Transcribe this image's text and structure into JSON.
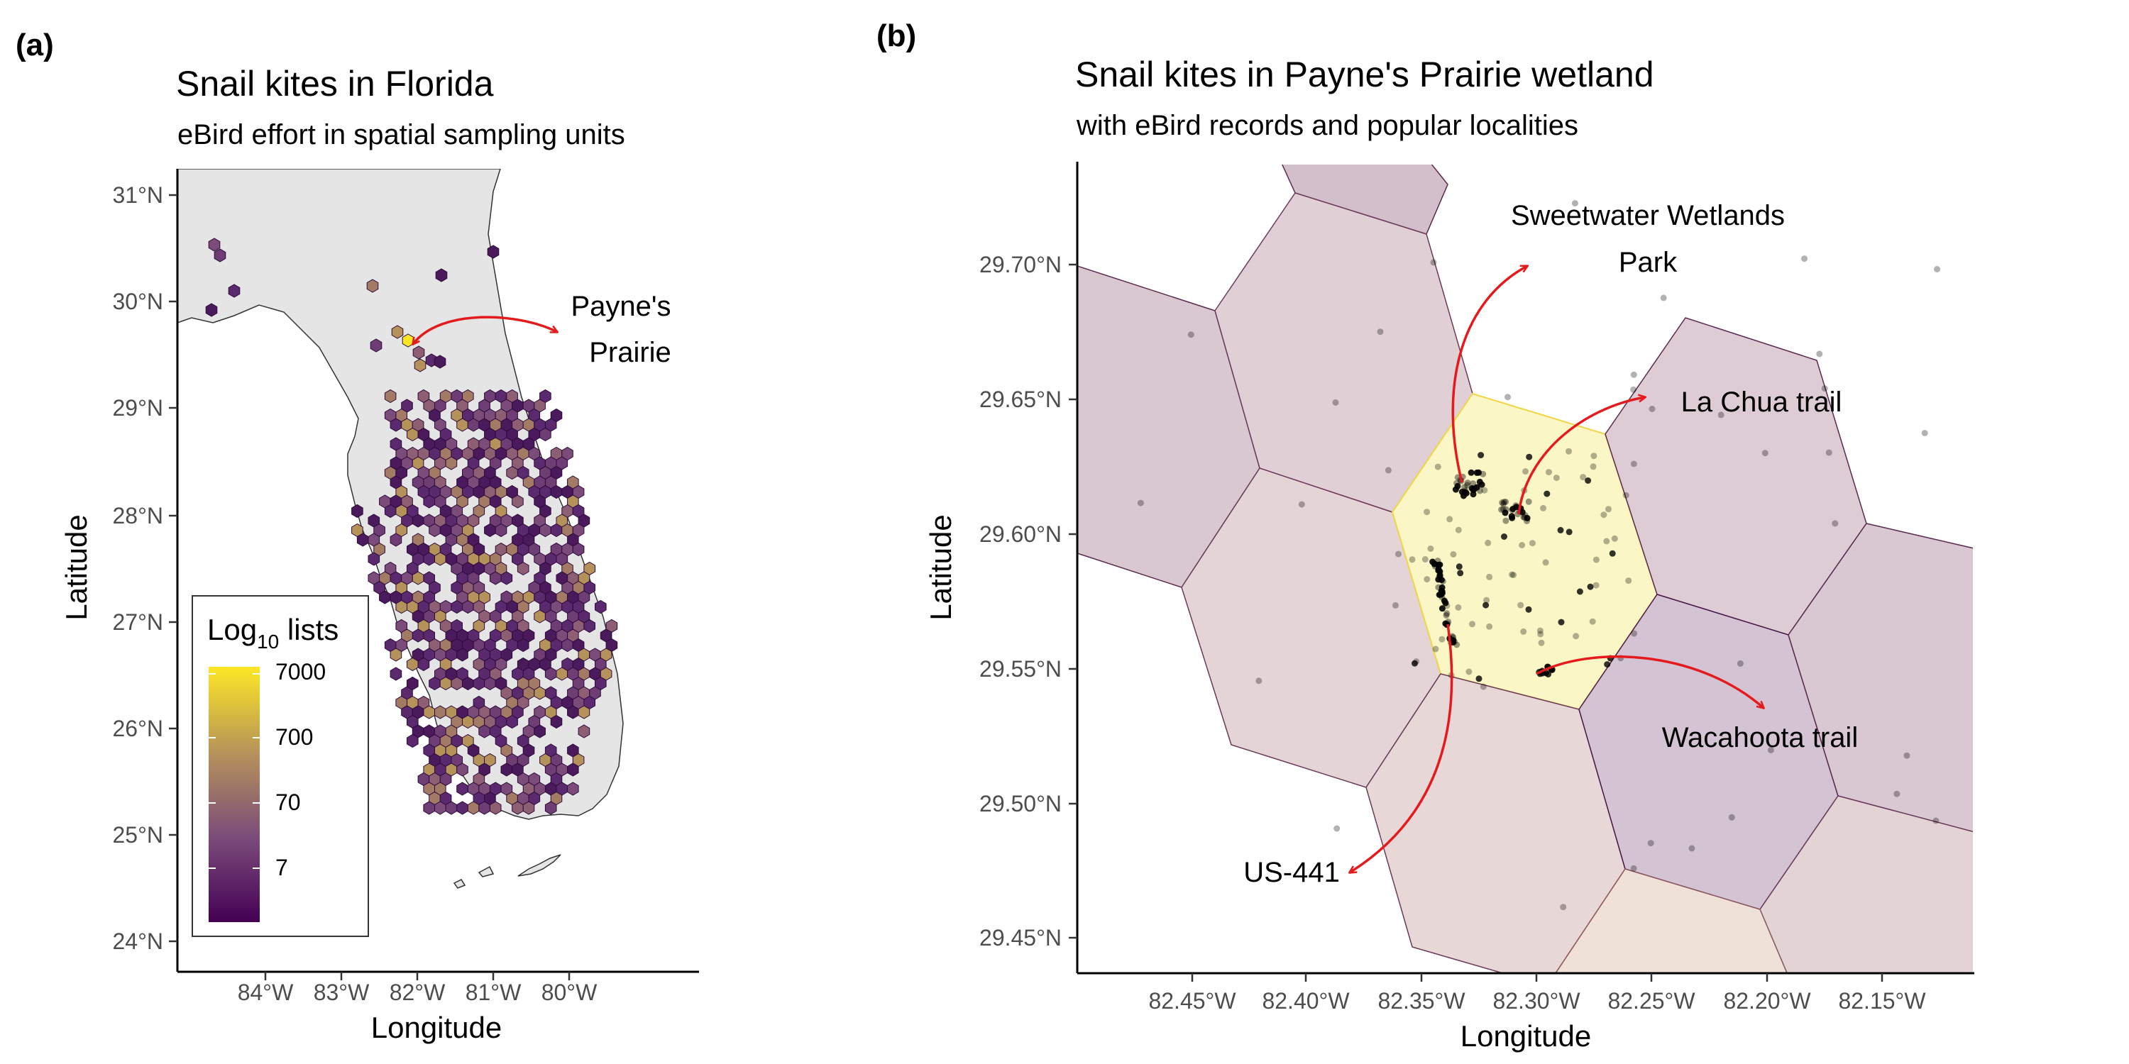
{
  "panel_a": {
    "tag": "(a)",
    "title": "Snail kites in Florida",
    "subtitle": "eBird effort in spatial sampling units",
    "xlabel": "Longitude",
    "ylabel": "Latitude",
    "x_ticks": [
      "84°W",
      "83°W",
      "82°W",
      "81°W",
      "80°W"
    ],
    "y_ticks": [
      "24°N",
      "25°N",
      "26°N",
      "27°N",
      "28°N",
      "29°N",
      "30°N",
      "31°N"
    ],
    "annotation": [
      "Payne's",
      "Prairie"
    ],
    "legend": {
      "title_main": "Log",
      "title_sub": "10",
      "title_rest": " lists",
      "labels": [
        "7000",
        "700",
        "70",
        "7"
      ]
    },
    "colors": {
      "land": "#e5e5e5",
      "low": "#440154",
      "mid": "#b5925a",
      "high": "#fde725",
      "arrow": "#e41a1c"
    }
  },
  "panel_b": {
    "tag": "(b)",
    "title": "Snail kites in Payne's Prairie wetland",
    "subtitle": "with eBird records and popular localities",
    "xlabel": "Longitude",
    "ylabel": "Latitude",
    "x_ticks": [
      "82.45°W",
      "82.40°W",
      "82.35°W",
      "82.30°W",
      "82.25°W",
      "82.20°W",
      "82.15°W"
    ],
    "y_ticks": [
      "29.45°N",
      "29.50°N",
      "29.55°N",
      "29.60°N",
      "29.65°N",
      "29.70°N"
    ],
    "localities": {
      "sweetwater": [
        "Sweetwater Wetlands",
        "Park"
      ],
      "la_chua": "La Chua trail",
      "wacahoota": "Wacahoota trail",
      "us441": "US-441"
    },
    "colors": {
      "hex_highlight": "#fdf8c8",
      "hex_highlight_edge": "#f2d84a",
      "points": "#000000",
      "arrow": "#e41a1c"
    }
  }
}
